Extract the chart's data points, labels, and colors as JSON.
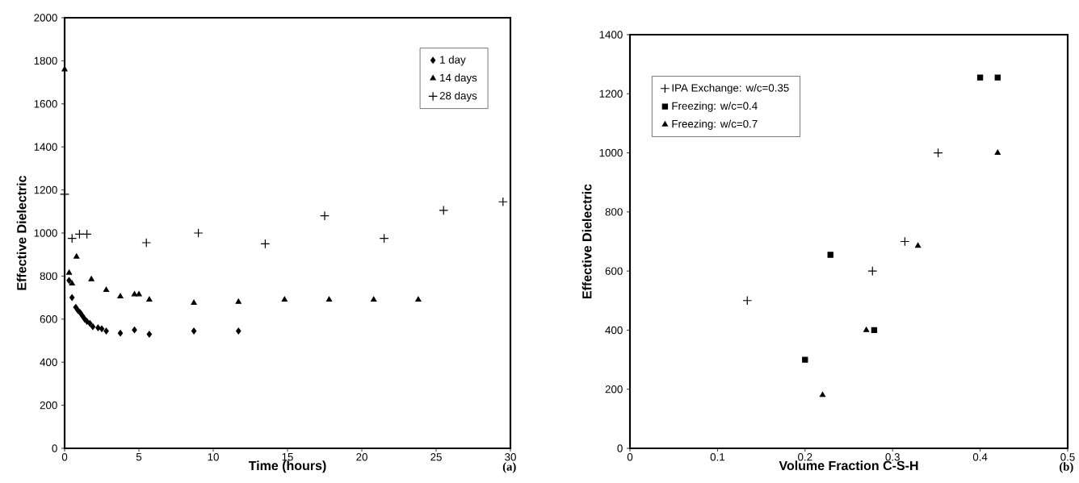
{
  "chart_data": [
    {
      "type": "scatter",
      "xlabel": "Time (hours)",
      "ylabel": "Effective Dielectric",
      "annotations": [
        "(a)"
      ],
      "xlim": [
        0,
        30
      ],
      "xticks": [
        0,
        5,
        10,
        15,
        20,
        25,
        30
      ],
      "ylim": [
        0,
        2000
      ],
      "yticks": [
        0,
        200,
        400,
        600,
        800,
        1000,
        1200,
        1400,
        1600,
        1800,
        2000
      ],
      "grid": false,
      "legend": "top right",
      "series": [
        {
          "name": "1 day",
          "color": "#000000",
          "marker": "diamond",
          "x": [
            0.3,
            0.5,
            0.75,
            0.9,
            1.05,
            1.2,
            1.35,
            1.5,
            1.7,
            1.9,
            2.25,
            2.5,
            2.8,
            3.75,
            4.7,
            5.7,
            8.7,
            11.7
          ],
          "values": [
            780,
            700,
            655,
            640,
            630,
            615,
            600,
            590,
            580,
            565,
            560,
            555,
            545,
            535,
            550,
            530,
            545,
            545
          ]
        },
        {
          "name": "14 days",
          "color": "#000000",
          "marker": "triangle",
          "x": [
            0,
            0.3,
            0.5,
            0.8,
            1.8,
            2.8,
            3.75,
            4.7,
            5.0,
            5.7,
            8.7,
            11.7,
            14.8,
            17.8,
            20.8,
            23.8
          ],
          "values": [
            1760,
            815,
            765,
            890,
            785,
            735,
            705,
            715,
            715,
            690,
            675,
            680,
            690,
            690,
            690,
            690
          ]
        },
        {
          "name": "28 days",
          "color": "#000000",
          "marker": "cross",
          "x": [
            0,
            0.5,
            1.0,
            1.5,
            5.5,
            9.0,
            13.5,
            17.5,
            21.5,
            25.5,
            29.5
          ],
          "values": [
            1180,
            975,
            995,
            995,
            955,
            1000,
            950,
            1080,
            975,
            1105,
            1145
          ]
        }
      ]
    },
    {
      "type": "scatter",
      "xlabel": "Volume Fraction C-S-H",
      "ylabel": "Effective Dielectric",
      "annotations": [
        "(b)"
      ],
      "xlim": [
        0,
        0.5
      ],
      "xticks": [
        0,
        0.1,
        0.2,
        0.3,
        0.4,
        0.5
      ],
      "ylim": [
        0,
        1400
      ],
      "yticks": [
        0,
        200,
        400,
        600,
        800,
        1000,
        1200,
        1400
      ],
      "grid": false,
      "legend": "top left",
      "series": [
        {
          "name": "IPA Exchange: w/c=0.35",
          "color": "#000000",
          "marker": "cross",
          "x": [
            0.134,
            0.277,
            0.314,
            0.352
          ],
          "values": [
            500,
            600,
            700,
            1000
          ]
        },
        {
          "name": "Freezing: w/c=0.4",
          "color": "#000000",
          "marker": "square",
          "x": [
            0.2,
            0.229,
            0.279,
            0.4,
            0.42
          ],
          "values": [
            300,
            655,
            400,
            1255,
            1255
          ]
        },
        {
          "name": "Freezing: w/c=0.7",
          "color": "#000000",
          "marker": "triangle",
          "x": [
            0.22,
            0.27,
            0.329,
            0.42
          ],
          "values": [
            180,
            400,
            685,
            1000
          ]
        }
      ]
    }
  ]
}
